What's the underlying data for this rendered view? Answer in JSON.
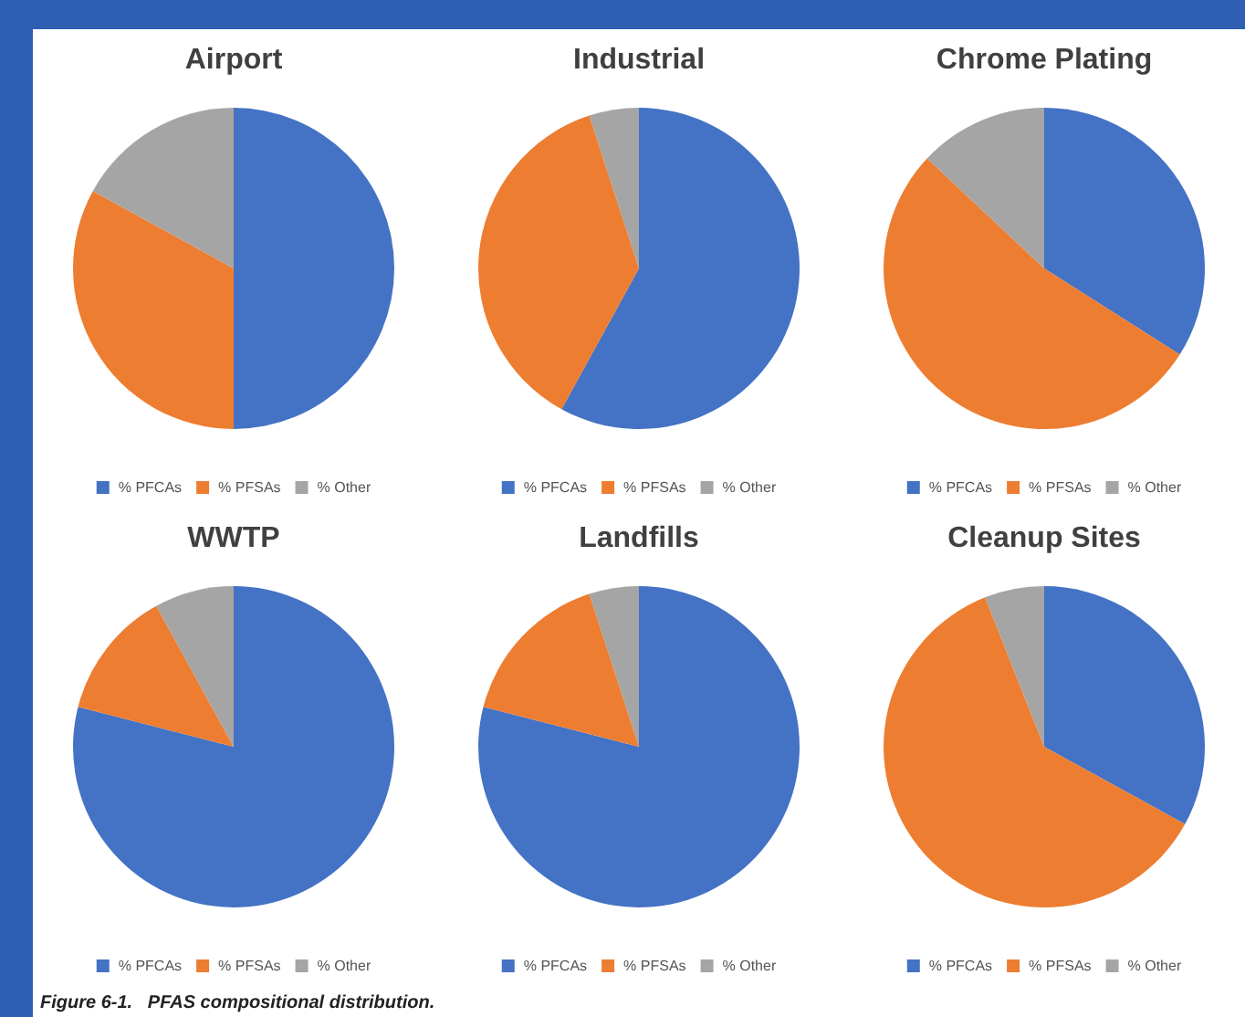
{
  "chart_data": [
    {
      "type": "pie",
      "title": "Airport",
      "categories": [
        "% PFCAs",
        "% PFSAs",
        "% Other"
      ],
      "values": [
        50,
        33,
        17
      ],
      "colors": [
        "#4472c4",
        "#ed7d31",
        "#a5a5a5"
      ],
      "legend": "bottom"
    },
    {
      "type": "pie",
      "title": "Industrial",
      "categories": [
        "% PFCAs",
        "% PFSAs",
        "% Other"
      ],
      "values": [
        58,
        37,
        5
      ],
      "colors": [
        "#4472c4",
        "#ed7d31",
        "#a5a5a5"
      ],
      "legend": "bottom"
    },
    {
      "type": "pie",
      "title": "Chrome Plating",
      "categories": [
        "% PFCAs",
        "% PFSAs",
        "% Other"
      ],
      "values": [
        34,
        53,
        13
      ],
      "colors": [
        "#4472c4",
        "#ed7d31",
        "#a5a5a5"
      ],
      "legend": "bottom"
    },
    {
      "type": "pie",
      "title": "WWTP",
      "categories": [
        "% PFCAs",
        "% PFSAs",
        "% Other"
      ],
      "values": [
        79,
        13,
        8
      ],
      "colors": [
        "#4472c4",
        "#ed7d31",
        "#a5a5a5"
      ],
      "legend": "bottom",
      "annotations": [
        "Figure 6-1.   PFAS compositional distribution."
      ]
    },
    {
      "type": "pie",
      "title": "Landfills",
      "categories": [
        "% PFCAs",
        "% PFSAs",
        "% Other"
      ],
      "values": [
        79,
        16,
        5
      ],
      "colors": [
        "#4472c4",
        "#ed7d31",
        "#a5a5a5"
      ],
      "legend": "bottom"
    },
    {
      "type": "pie",
      "title": "Cleanup Sites",
      "categories": [
        "% PFCAs",
        "% PFSAs",
        "% Other"
      ],
      "values": [
        33,
        61,
        6
      ],
      "colors": [
        "#4472c4",
        "#ed7d31",
        "#a5a5a5"
      ],
      "legend": "bottom"
    }
  ]
}
